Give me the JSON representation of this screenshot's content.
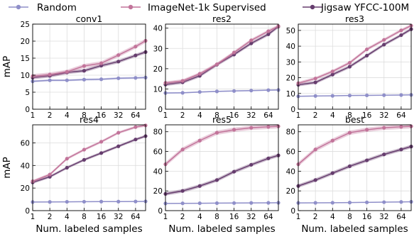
{
  "colors": {
    "random": "#8f8fc9",
    "supervised": "#c2749a",
    "jigsaw": "#663d6e",
    "grid": "#dddddd"
  },
  "legend": {
    "placement": "top-center",
    "entries": [
      {
        "label": "Random",
        "series": "random"
      },
      {
        "label": "ImageNet-1k Supervised",
        "series": "supervised"
      },
      {
        "label": "Jigsaw YFCC-100M",
        "series": "jigsaw"
      }
    ]
  },
  "shared": {
    "ylabel": "mAP",
    "xlabel": "Num. labeled samples",
    "x": [
      1,
      2,
      4,
      8,
      16,
      32,
      64,
      96
    ],
    "xticks": [
      "1",
      "2",
      "4",
      "8",
      "16",
      "32",
      "64"
    ],
    "xscale": "log2"
  },
  "chart_data": [
    {
      "type": "line",
      "title": "conv1",
      "ylim": [
        0,
        25
      ],
      "yticks": [
        0,
        5,
        10,
        15,
        20,
        25
      ],
      "grid": true,
      "series": [
        {
          "name": "Random",
          "key": "random",
          "values": [
            8.2,
            8.5,
            8.5,
            8.7,
            8.8,
            9.1,
            9.2,
            9.3
          ],
          "band": 0.3
        },
        {
          "name": "ImageNet-1k Supervised",
          "key": "supervised",
          "values": [
            9.7,
            10.2,
            11.0,
            12.7,
            13.5,
            15.9,
            18.4,
            20.1
          ],
          "band": 0.6
        },
        {
          "name": "Jigsaw YFCC-100M",
          "key": "jigsaw",
          "values": [
            9.3,
            9.8,
            10.8,
            11.3,
            12.8,
            14.0,
            15.8,
            16.8
          ],
          "band": 0.5
        }
      ]
    },
    {
      "type": "line",
      "title": "res2",
      "ylim": [
        0,
        42
      ],
      "yticks": [
        0,
        10,
        20,
        30,
        40
      ],
      "grid": true,
      "series": [
        {
          "name": "Random",
          "key": "random",
          "values": [
            8.0,
            8.1,
            8.5,
            8.8,
            9.0,
            9.2,
            9.4,
            9.5
          ],
          "band": 0.3
        },
        {
          "name": "ImageNet-1k Supervised",
          "key": "supervised",
          "values": [
            13.0,
            14.0,
            17.5,
            22.2,
            28.0,
            34.0,
            38.5,
            41.0
          ],
          "band": 0.8
        },
        {
          "name": "Jigsaw YFCC-100M",
          "key": "jigsaw",
          "values": [
            12.2,
            13.3,
            16.5,
            22.0,
            27.0,
            32.5,
            37.0,
            40.8
          ],
          "band": 0.8
        }
      ]
    },
    {
      "type": "line",
      "title": "res3",
      "ylim": [
        0,
        54
      ],
      "yticks": [
        0,
        10,
        20,
        30,
        40,
        50
      ],
      "grid": true,
      "series": [
        {
          "name": "Random",
          "key": "random",
          "values": [
            8.2,
            8.4,
            8.5,
            8.7,
            8.8,
            8.9,
            9.0,
            9.1
          ],
          "band": 0.3
        },
        {
          "name": "ImageNet-1k Supervised",
          "key": "supervised",
          "values": [
            16.5,
            19.5,
            24.0,
            29.5,
            38.0,
            44.0,
            50.0,
            53.0
          ],
          "band": 1.0
        },
        {
          "name": "Jigsaw YFCC-100M",
          "key": "jigsaw",
          "values": [
            15.5,
            17.0,
            22.0,
            27.0,
            34.0,
            41.0,
            47.0,
            50.8
          ],
          "band": 1.0
        }
      ]
    },
    {
      "type": "line",
      "title": "res4",
      "ylim": [
        0,
        76
      ],
      "yticks": [
        0,
        20,
        40,
        60
      ],
      "grid": true,
      "series": [
        {
          "name": "Random",
          "key": "random",
          "values": [
            7.6,
            7.7,
            7.8,
            7.9,
            8.0,
            8.0,
            8.1,
            8.2
          ],
          "band": 0.3
        },
        {
          "name": "ImageNet-1k Supervised",
          "key": "supervised",
          "values": [
            26.0,
            32.0,
            46.0,
            54.0,
            61.0,
            69.0,
            74.0,
            75.5
          ],
          "band": 1.2
        },
        {
          "name": "Jigsaw YFCC-100M",
          "key": "jigsaw",
          "values": [
            25.0,
            30.0,
            38.0,
            45.0,
            51.0,
            57.0,
            63.0,
            66.0
          ],
          "band": 1.2
        }
      ]
    },
    {
      "type": "line",
      "title": "res5",
      "ylim": [
        0,
        87
      ],
      "yticks": [
        0,
        20,
        40,
        60,
        80
      ],
      "grid": true,
      "series": [
        {
          "name": "Random",
          "key": "random",
          "values": [
            7.3,
            7.4,
            7.5,
            7.6,
            7.7,
            7.8,
            7.9,
            8.0
          ],
          "band": 0.3
        },
        {
          "name": "ImageNet-1k Supervised",
          "key": "supervised",
          "values": [
            47.0,
            62.0,
            71.0,
            79.0,
            82.0,
            84.0,
            85.0,
            85.5
          ],
          "band": 2.2
        },
        {
          "name": "Jigsaw YFCC-100M",
          "key": "jigsaw",
          "values": [
            17.0,
            20.0,
            25.0,
            31.0,
            39.5,
            46.5,
            53.0,
            56.0
          ],
          "band": 1.8
        }
      ]
    },
    {
      "type": "line",
      "title": "best",
      "ylim": [
        0,
        87
      ],
      "yticks": [
        0,
        20,
        40,
        60,
        80
      ],
      "grid": true,
      "series": [
        {
          "name": "Random",
          "key": "random",
          "values": [
            7.8,
            7.9,
            8.0,
            8.2,
            8.4,
            8.6,
            8.8,
            9.0
          ],
          "band": 0.3
        },
        {
          "name": "ImageNet-1k Supervised",
          "key": "supervised",
          "values": [
            47.0,
            62.0,
            71.0,
            79.0,
            82.0,
            84.0,
            85.0,
            85.5
          ],
          "band": 2.2
        },
        {
          "name": "Jigsaw YFCC-100M",
          "key": "jigsaw",
          "values": [
            25.0,
            31.0,
            38.0,
            45.0,
            51.0,
            57.0,
            62.0,
            65.0
          ],
          "band": 1.8
        }
      ]
    }
  ]
}
